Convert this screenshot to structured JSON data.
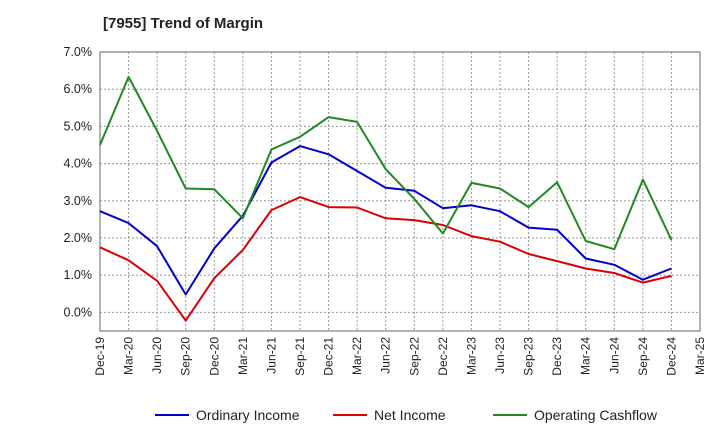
{
  "chart_data": {
    "type": "line",
    "title": "[7955]  Trend of Margin",
    "xlabel": "",
    "ylabel": "",
    "categories": [
      "Dec-19",
      "Mar-20",
      "Jun-20",
      "Sep-20",
      "Dec-20",
      "Mar-21",
      "Jun-21",
      "Sep-21",
      "Dec-21",
      "Mar-22",
      "Jun-22",
      "Sep-22",
      "Dec-22",
      "Mar-23",
      "Jun-23",
      "Sep-23",
      "Dec-23",
      "Mar-24",
      "Jun-24",
      "Sep-24",
      "Dec-24",
      "Mar-25"
    ],
    "y_ticks": [
      "7.0%",
      "6.0%",
      "5.0%",
      "4.0%",
      "3.0%",
      "2.0%",
      "1.0%",
      "0.0%"
    ],
    "ylim": [
      -0.5,
      7.0
    ],
    "grid": true,
    "legend_position": "bottom",
    "series": [
      {
        "name": "Ordinary Income",
        "color": "#0000cc",
        "values": [
          2.72,
          2.4,
          1.78,
          0.48,
          1.72,
          2.6,
          4.03,
          4.47,
          4.25,
          3.8,
          3.35,
          3.27,
          2.8,
          2.88,
          2.72,
          2.28,
          2.22,
          1.45,
          1.28,
          0.88,
          1.18,
          null
        ]
      },
      {
        "name": "Net Income",
        "color": "#dd0000",
        "values": [
          1.75,
          1.4,
          0.85,
          -0.22,
          0.92,
          1.68,
          2.75,
          3.1,
          2.83,
          2.82,
          2.53,
          2.48,
          2.35,
          2.05,
          1.9,
          1.57,
          1.38,
          1.18,
          1.06,
          0.8,
          0.98,
          null
        ]
      },
      {
        "name": "Operating Cashflow",
        "color": "#228822",
        "values": [
          4.5,
          6.33,
          4.88,
          3.33,
          3.31,
          2.53,
          4.38,
          4.72,
          5.25,
          5.12,
          3.85,
          3.05,
          2.12,
          3.48,
          3.33,
          2.83,
          3.5,
          1.92,
          1.7,
          3.57,
          1.95,
          null
        ]
      }
    ]
  }
}
